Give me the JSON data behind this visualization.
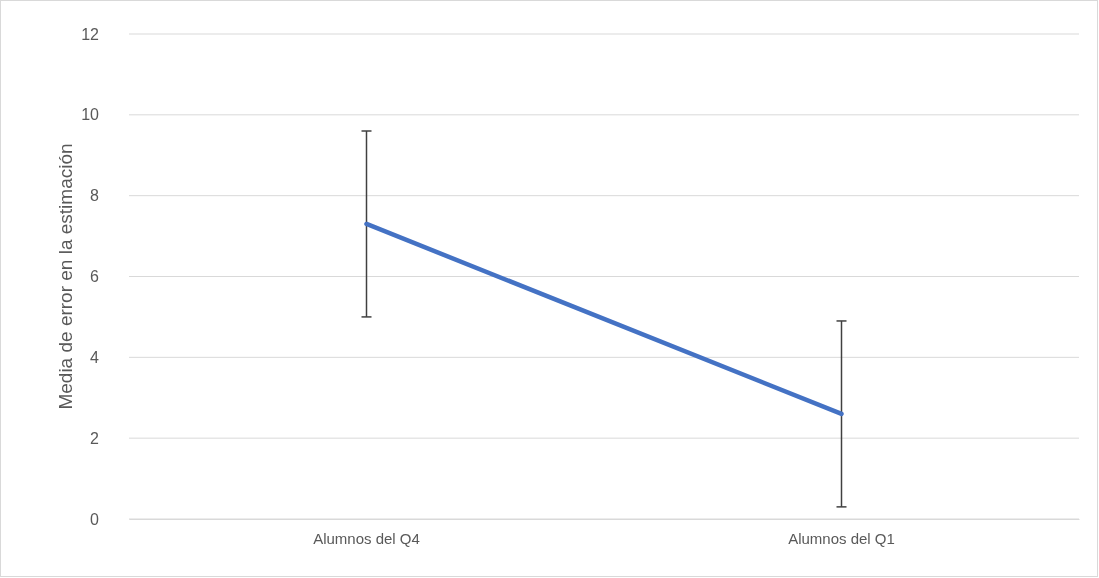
{
  "chart_data": {
    "type": "line",
    "ylabel": "Media de error en la estimación",
    "categories": [
      "Alumnos del Q4",
      "Alumnos del Q1"
    ],
    "series": [
      {
        "color": "#4472c4",
        "values": [
          7.3,
          2.6
        ],
        "errors": [
          2.3,
          2.3
        ]
      }
    ],
    "ylim": [
      0,
      12
    ],
    "yticks": [
      0,
      2,
      4,
      6,
      8,
      10,
      12
    ],
    "grid": "y",
    "marker": "none",
    "line_style": "solid"
  }
}
